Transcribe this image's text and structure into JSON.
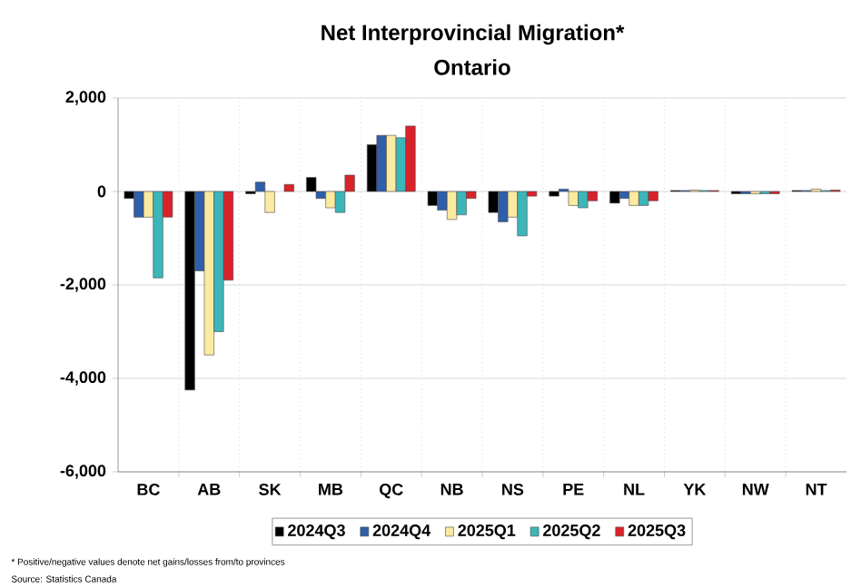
{
  "chart_data": {
    "type": "bar",
    "title": "Net Interprovincial Migration*",
    "subtitle": "Ontario",
    "categories": [
      "BC",
      "AB",
      "SK",
      "MB",
      "QC",
      "NB",
      "NS",
      "PE",
      "NL",
      "YK",
      "NW",
      "NT"
    ],
    "series": [
      {
        "name": "2024Q3",
        "color": "#000000",
        "values": [
          -150,
          -4250,
          -50,
          300,
          1000,
          -300,
          -450,
          -100,
          -250,
          20,
          -50,
          20
        ]
      },
      {
        "name": "2024Q4",
        "color": "#2e5fa8",
        "values": [
          -550,
          -1700,
          200,
          -150,
          1200,
          -400,
          -650,
          50,
          -150,
          20,
          -50,
          20
        ]
      },
      {
        "name": "2025Q1",
        "color": "#fbeaa0",
        "values": [
          -550,
          -3500,
          -450,
          -350,
          1200,
          -600,
          -550,
          -300,
          -300,
          30,
          -50,
          50
        ]
      },
      {
        "name": "2025Q2",
        "color": "#3cb6b8",
        "values": [
          -1850,
          -3000,
          null,
          -450,
          1150,
          -500,
          -950,
          -350,
          -300,
          20,
          -50,
          20
        ]
      },
      {
        "name": "2025Q3",
        "color": "#d8232a",
        "values": [
          -550,
          -1900,
          150,
          350,
          1400,
          -150,
          -100,
          -200,
          -200,
          20,
          -50,
          30
        ]
      }
    ],
    "ylim": [
      -6000,
      2000
    ],
    "yticks": [
      {
        "value": -6000,
        "label": "-6,000"
      },
      {
        "value": -4000,
        "label": "-4,000"
      },
      {
        "value": -2000,
        "label": "-2,000"
      },
      0,
      {
        "value": 2000,
        "label": "2,000"
      }
    ],
    "grid": true,
    "legend": "bottom",
    "annotations": [
      "* Positive/negative values denote net gains/losses from/to provinces",
      "Source: Statistics Canada"
    ]
  }
}
